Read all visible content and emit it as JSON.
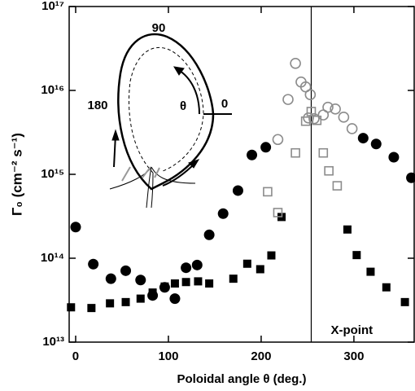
{
  "chart_data": {
    "type": "scatter",
    "x_label": "Poloidal angle θ (deg.)",
    "y_label": "Γ₀ (cm⁻² s⁻¹)",
    "xlim": [
      -7,
      365
    ],
    "ylim": [
      10000000000000.0,
      1e+17
    ],
    "log_y": true,
    "xticks": [
      0,
      100,
      200,
      300
    ],
    "yticks": [
      {
        "value": 10000000000000.0,
        "label": "10¹³"
      },
      {
        "value": 100000000000000.0,
        "label": "10¹⁴"
      },
      {
        "value": 1000000000000000.0,
        "label": "10¹⁵"
      },
      {
        "value": 1e+16,
        "label": "10¹⁶"
      },
      {
        "value": 1e+17,
        "label": "10¹⁷"
      }
    ],
    "series": [
      {
        "marker": "circle",
        "filled": true,
        "color": "#000000",
        "x": [
          0,
          19,
          38,
          54,
          70,
          83,
          96,
          107,
          119,
          131,
          144,
          159,
          175,
          190,
          205,
          310,
          324,
          343,
          362
        ],
        "values": [
          235000000000000.0,
          85000000000000.0,
          57000000000000.0,
          71000000000000.0,
          55000000000000.0,
          36000000000000.0,
          45000000000000.0,
          33000000000000.0,
          77000000000000.0,
          83000000000000.0,
          190000000000000.0,
          340000000000000.0,
          640000000000000.0,
          1700000000000000.0,
          2100000000000000.0,
          2700000000000000.0,
          2300000000000000.0,
          1600000000000000.0,
          910000000000000.0
        ]
      },
      {
        "marker": "square",
        "filled": true,
        "color": "#000000",
        "x": [
          -5,
          17,
          37,
          54,
          70,
          83,
          96,
          107,
          119,
          132,
          144,
          170,
          185,
          199,
          211,
          222,
          293,
          303,
          318,
          335,
          355
        ],
        "values": [
          26000000000000.0,
          25500000000000.0,
          29000000000000.0,
          30000000000000.0,
          33000000000000.0,
          39000000000000.0,
          46000000000000.0,
          50000000000000.0,
          52000000000000.0,
          53000000000000.0,
          50000000000000.0,
          57000000000000.0,
          86000000000000.0,
          74000000000000.0,
          108000000000000.0,
          310000000000000.0,
          220000000000000.0,
          109000000000000.0,
          69000000000000.0,
          45000000000000.0,
          30000000000000.0
        ]
      },
      {
        "marker": "circle",
        "filled": false,
        "color": "#8c8c8c",
        "x": [
          218,
          229,
          237,
          243,
          248,
          253,
          251,
          257,
          267,
          272,
          280,
          289,
          298
        ],
        "values": [
          2600000000000000.0,
          7800000000000000.0,
          2.1e+16,
          1.26e+16,
          1.1e+16,
          8900000000000000.0,
          4700000000000000.0,
          4600000000000000.0,
          5100000000000000.0,
          6300000000000000.0,
          6000000000000000.0,
          4800000000000000.0,
          3500000000000000.0
        ]
      },
      {
        "marker": "square",
        "filled": false,
        "color": "#8c8c8c",
        "x": [
          207,
          218,
          237,
          248,
          254,
          260,
          267,
          273,
          282
        ],
        "values": [
          620000000000000.0,
          350000000000000.0,
          1800000000000000.0,
          4300000000000000.0,
          5600000000000000.0,
          4400000000000000.0,
          1800000000000000.0,
          1100000000000000.0,
          730000000000000.0
        ]
      }
    ],
    "vlines": [
      {
        "x": 254,
        "label": "X-point"
      }
    ],
    "inset_labels": [
      "90",
      "180",
      "θ",
      "0"
    ]
  }
}
